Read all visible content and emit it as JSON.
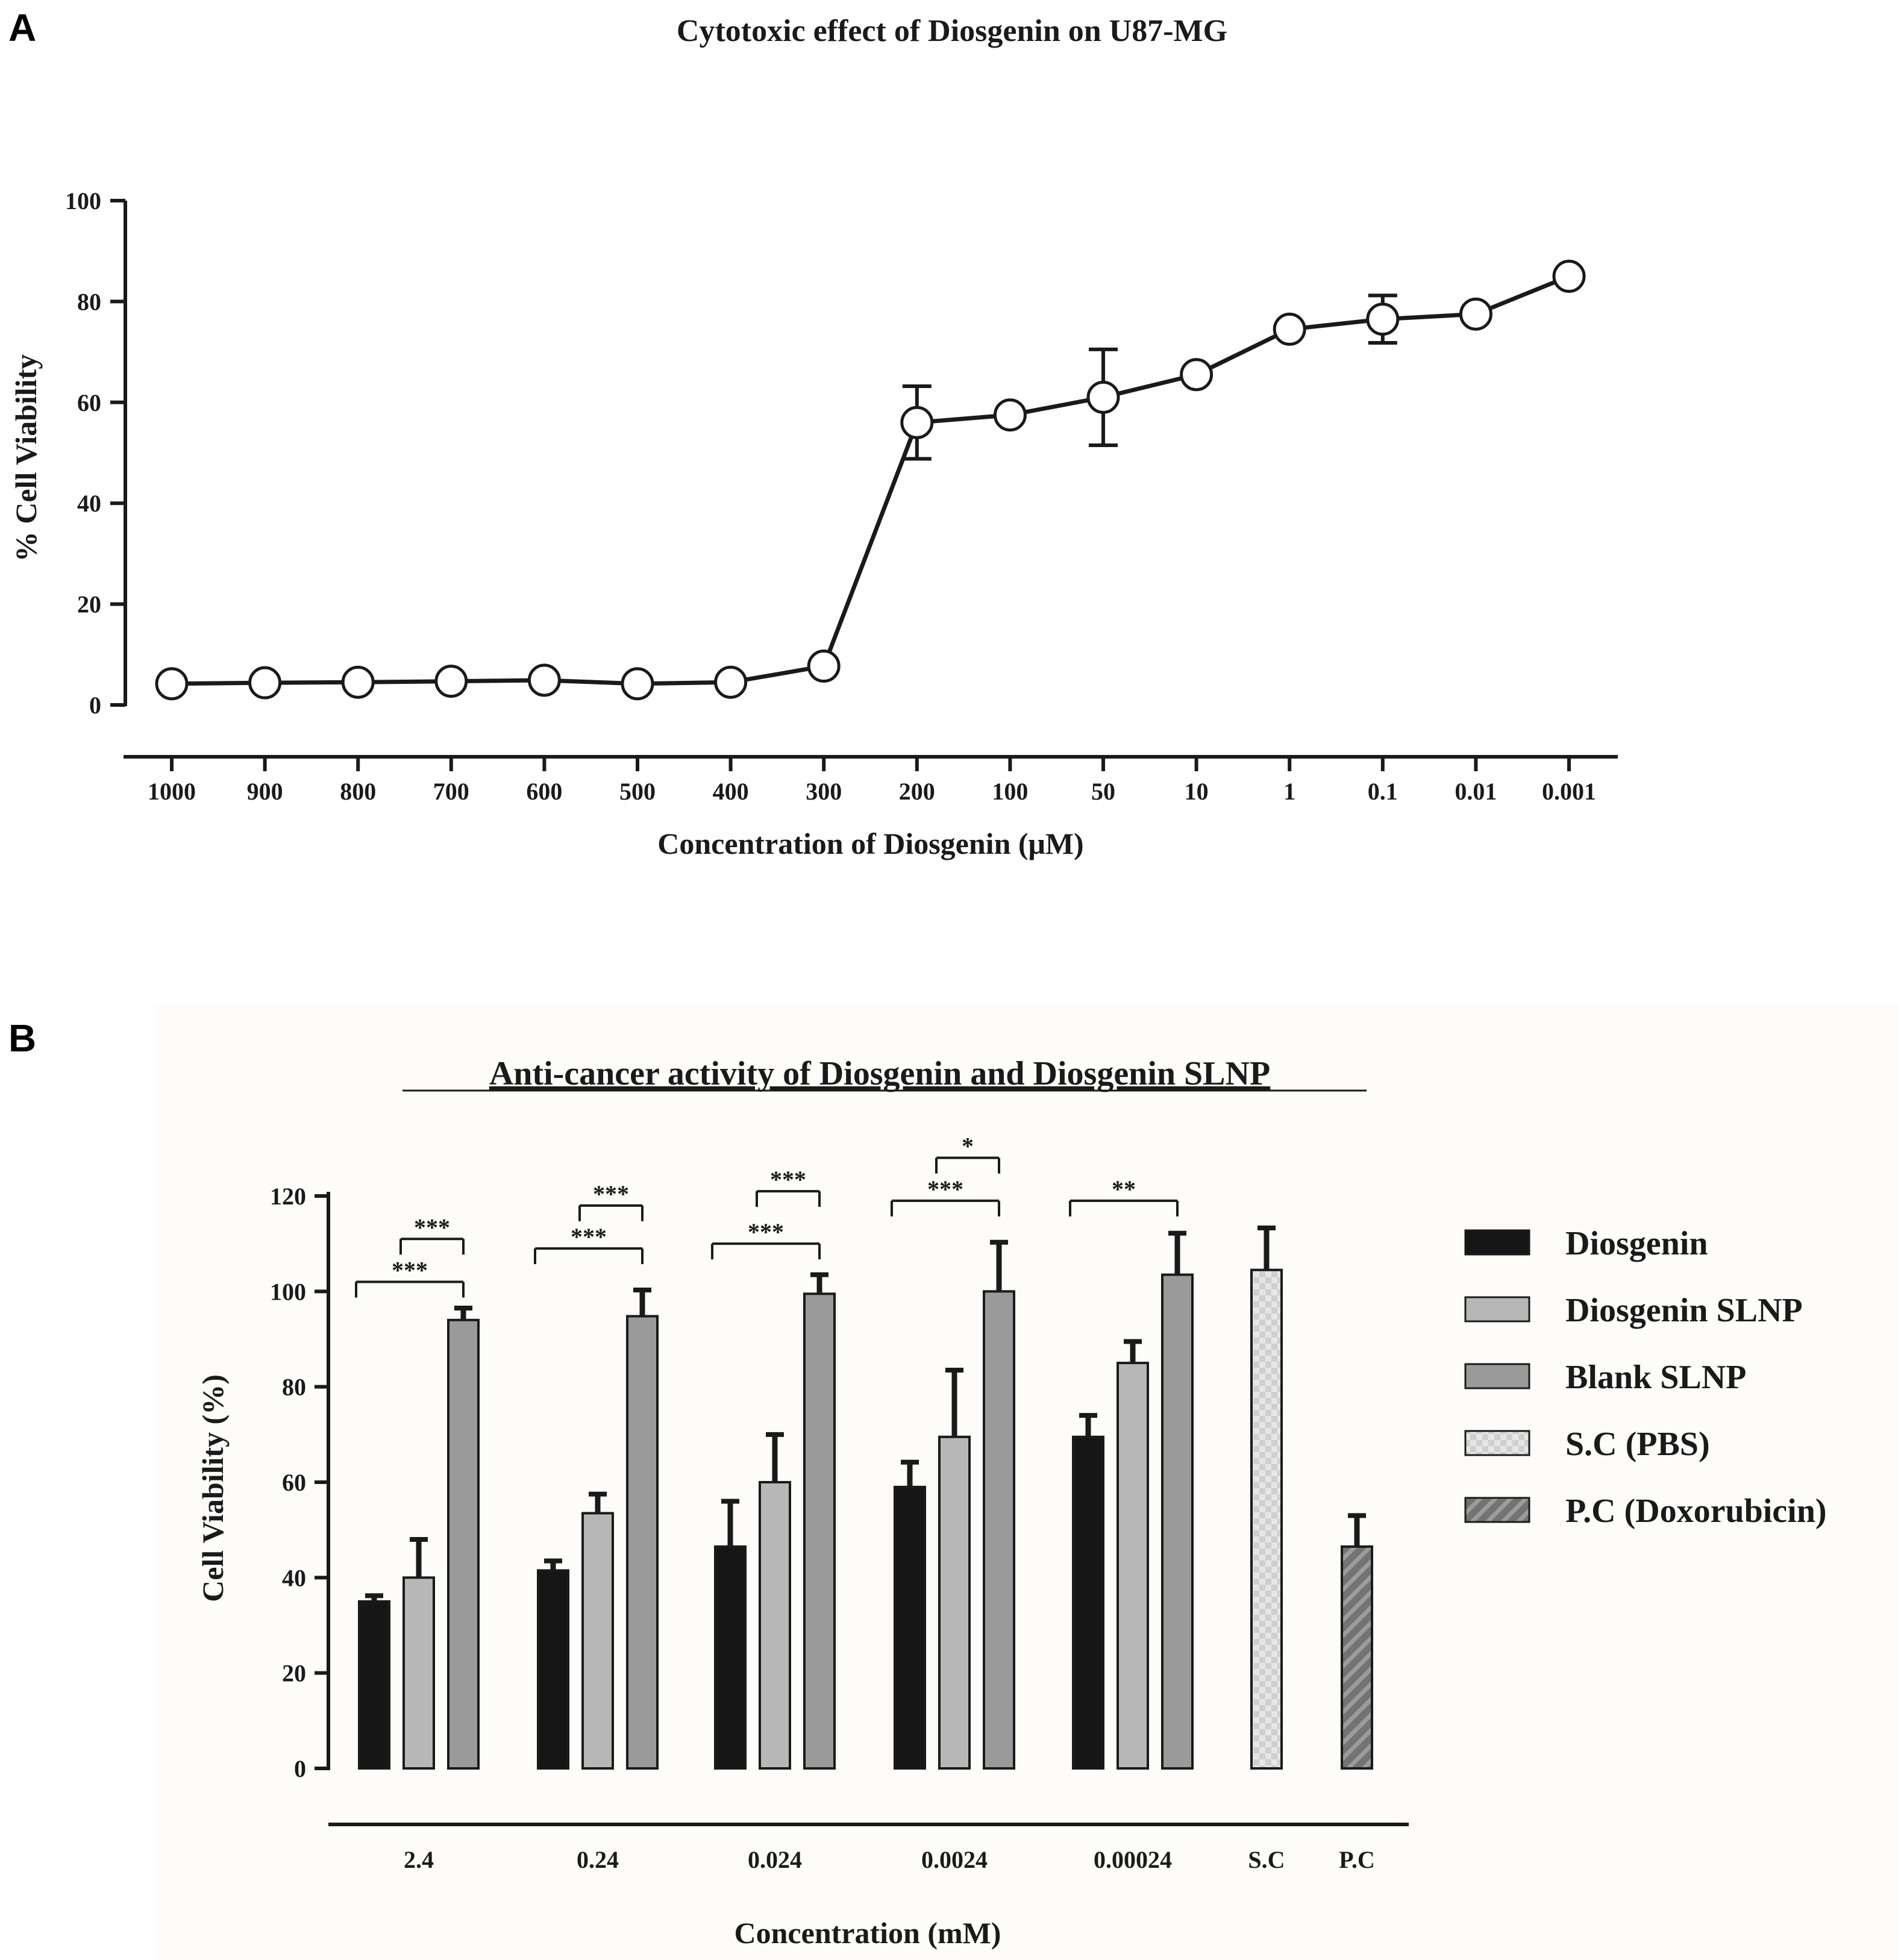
{
  "figure": {
    "panel_labels": [
      "A",
      "B"
    ]
  },
  "chart_data": [
    {
      "type": "line",
      "title": "Cytotoxic effect of Diosgenin on U87-MG",
      "xlabel": "Concentration of Diosgenin (μM)",
      "ylabel": "% Cell Viability",
      "ylim": [
        0,
        100
      ],
      "yticks": [
        "0",
        "20",
        "40",
        "60",
        "80",
        "100"
      ],
      "categories": [
        "1000",
        "900",
        "800",
        "700",
        "600",
        "500",
        "400",
        "300",
        "200",
        "100",
        "50",
        "10",
        "1",
        "0.1",
        "0.01",
        "0.001"
      ],
      "values": [
        4.2,
        4.4,
        4.5,
        4.7,
        4.9,
        4.2,
        4.5,
        7.7,
        56.0,
        57.5,
        61.0,
        65.5,
        74.5,
        76.5,
        77.5,
        85.0
      ],
      "errors": [
        0,
        0,
        0,
        0,
        0,
        0,
        0,
        0,
        7.2,
        0,
        9.5,
        0,
        0,
        4.7,
        0,
        0
      ],
      "marker": "open-circle",
      "color": "#1a1a1a"
    },
    {
      "type": "bar",
      "title": "Anti-cancer activity of Diosgenin and Diosgenin SLNP",
      "xlabel": "Concentration (mM)",
      "ylabel": "Cell Viability (%)",
      "ylim": [
        0,
        120
      ],
      "yticks": [
        "0",
        "20",
        "40",
        "60",
        "80",
        "100",
        "120"
      ],
      "categories": [
        "2.4",
        "0.24",
        "0.024",
        "0.0024",
        "0.00024",
        "S.C",
        "P.C"
      ],
      "series": [
        {
          "name": "Diosgenin",
          "color": "#161616",
          "pattern": "solid",
          "values": [
            35.0,
            41.5,
            46.5,
            59.0,
            69.5,
            null,
            null
          ],
          "errors": [
            1.2,
            2.0,
            9.5,
            5.2,
            4.5,
            null,
            null
          ]
        },
        {
          "name": "Diosgenin SLNP",
          "color": "#b7b7b7",
          "pattern": "solid",
          "values": [
            40.0,
            53.5,
            60.0,
            69.5,
            85.0,
            null,
            null
          ],
          "errors": [
            8.0,
            4.0,
            10.0,
            14.0,
            4.5,
            null,
            null
          ]
        },
        {
          "name": "Blank SLNP",
          "color": "#9a9a9a",
          "pattern": "solid",
          "values": [
            94.0,
            94.8,
            99.5,
            100.0,
            103.5,
            null,
            null
          ],
          "errors": [
            2.5,
            5.5,
            4.0,
            10.3,
            8.7,
            null,
            null
          ]
        },
        {
          "name": "S.C (PBS)",
          "color": "#dddddd",
          "pattern": "checker",
          "values": [
            null,
            null,
            null,
            null,
            null,
            104.5,
            null
          ],
          "errors": [
            null,
            null,
            null,
            null,
            null,
            8.8,
            null
          ]
        },
        {
          "name": "P.C (Doxorubicin)",
          "color": "#6a6a6a",
          "pattern": "diagonal",
          "values": [
            null,
            null,
            null,
            null,
            null,
            null,
            46.5
          ],
          "errors": [
            null,
            null,
            null,
            null,
            null,
            null,
            6.5
          ]
        }
      ],
      "significance": [
        {
          "group": 0,
          "from": 1,
          "to": 2,
          "at": 111,
          "label": "***"
        },
        {
          "group": 0,
          "from": 0,
          "to": 2,
          "at": 102,
          "label": "***"
        },
        {
          "group": 1,
          "from": 1,
          "to": 2,
          "at": 118,
          "label": "***"
        },
        {
          "group": 1,
          "from": 0,
          "to": 2,
          "at": 109,
          "label": "***"
        },
        {
          "group": 2,
          "from": 1,
          "to": 2,
          "at": 121,
          "label": "***"
        },
        {
          "group": 2,
          "from": 0,
          "to": 2,
          "at": 110,
          "label": "***"
        },
        {
          "group": 3,
          "from": 1,
          "to": 2,
          "at": 128,
          "label": "*"
        },
        {
          "group": 3,
          "from": 0,
          "to": 2,
          "at": 119,
          "label": "***"
        },
        {
          "group": 4,
          "from": 0,
          "to": 2,
          "at": 119,
          "label": "**"
        }
      ],
      "legend_position": "right"
    }
  ]
}
